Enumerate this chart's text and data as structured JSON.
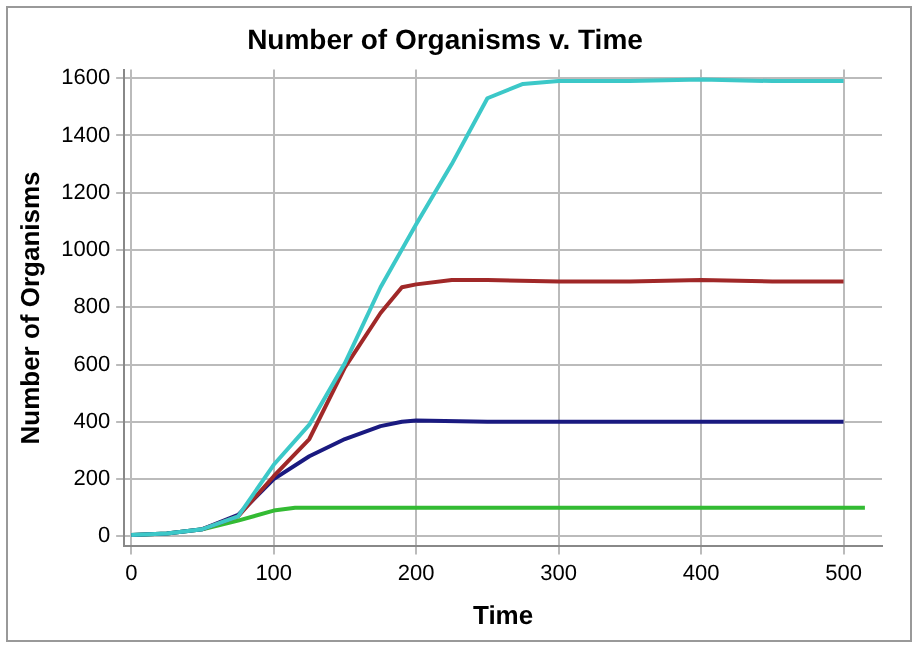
{
  "chart_data": {
    "type": "line",
    "title": "Number of Organisms v. Time",
    "xlabel": "Time",
    "ylabel": "Number of Organisms",
    "xlim": [
      -5,
      527
    ],
    "xticks": [
      0,
      100,
      200,
      300,
      400,
      500
    ],
    "ylim": [
      -35,
      1630
    ],
    "yticks": [
      0,
      200,
      400,
      600,
      800,
      1000,
      1200,
      1400,
      1600
    ],
    "grid": true,
    "legend": false,
    "marker": "none",
    "line_style": "solid",
    "series": [
      {
        "color": "#3cc8c8",
        "x": [
          0,
          25,
          50,
          75,
          100,
          125,
          150,
          175,
          200,
          225,
          250,
          275,
          300,
          350,
          400,
          450,
          500
        ],
        "values": [
          5,
          10,
          25,
          70,
          250,
          390,
          605,
          870,
          1090,
          1300,
          1530,
          1580,
          1590,
          1590,
          1595,
          1590,
          1590
        ]
      },
      {
        "color": "#a02828",
        "x": [
          50,
          75,
          100,
          125,
          150,
          175,
          190,
          200,
          225,
          250,
          300,
          350,
          400,
          450,
          500
        ],
        "values": [
          25,
          70,
          210,
          340,
          590,
          780,
          870,
          880,
          895,
          895,
          890,
          890,
          895,
          890,
          890
        ]
      },
      {
        "color": "#1a1a80",
        "x": [
          0,
          25,
          50,
          75,
          100,
          125,
          150,
          175,
          190,
          200,
          250,
          300,
          350,
          400,
          450,
          500
        ],
        "values": [
          5,
          10,
          25,
          75,
          200,
          280,
          340,
          385,
          400,
          405,
          400,
          400,
          400,
          400,
          400,
          400
        ]
      },
      {
        "color": "#33bb33",
        "x": [
          0,
          25,
          50,
          75,
          100,
          115,
          150,
          200,
          300,
          400,
          500,
          515
        ],
        "values": [
          5,
          10,
          25,
          55,
          90,
          100,
          100,
          100,
          100,
          100,
          100,
          100
        ]
      }
    ]
  }
}
